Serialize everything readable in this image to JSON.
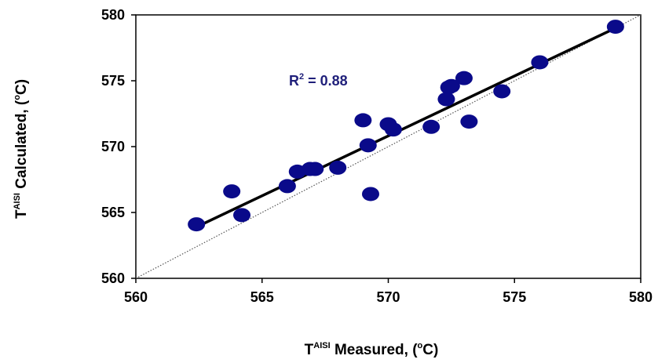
{
  "chart_data": {
    "type": "scatter",
    "xlabel": {
      "prefix": "T",
      "superscript": "AISI",
      "suffix_pre": " Measured, (",
      "suffix_sup": "o",
      "suffix_post": "C)"
    },
    "ylabel": {
      "prefix": "T",
      "superscript": "AISI",
      "suffix_pre": " Calculated, (",
      "suffix_sup": "o",
      "suffix_post": "C)"
    },
    "xlim": [
      560,
      580
    ],
    "ylim": [
      560,
      580
    ],
    "xticks": [
      "560",
      "565",
      "570",
      "575",
      "580"
    ],
    "yticks": [
      "560",
      "565",
      "570",
      "575",
      "580"
    ],
    "annotation": {
      "prefix": "R",
      "superscript": "2",
      "suffix": " = 0.88"
    },
    "points": [
      {
        "x": 562.4,
        "y": 564.1
      },
      {
        "x": 563.8,
        "y": 566.6
      },
      {
        "x": 564.2,
        "y": 564.8
      },
      {
        "x": 566.0,
        "y": 567.0
      },
      {
        "x": 566.4,
        "y": 568.1
      },
      {
        "x": 566.9,
        "y": 568.3
      },
      {
        "x": 567.1,
        "y": 568.3
      },
      {
        "x": 568.0,
        "y": 568.4
      },
      {
        "x": 569.0,
        "y": 572.0
      },
      {
        "x": 569.2,
        "y": 570.1
      },
      {
        "x": 569.3,
        "y": 566.4
      },
      {
        "x": 570.0,
        "y": 571.7
      },
      {
        "x": 570.2,
        "y": 571.3
      },
      {
        "x": 571.7,
        "y": 571.5
      },
      {
        "x": 572.3,
        "y": 573.6
      },
      {
        "x": 572.4,
        "y": 574.5
      },
      {
        "x": 572.5,
        "y": 574.6
      },
      {
        "x": 573.0,
        "y": 575.2
      },
      {
        "x": 573.2,
        "y": 571.9
      },
      {
        "x": 574.5,
        "y": 574.2
      },
      {
        "x": 576.0,
        "y": 576.4
      },
      {
        "x": 579.0,
        "y": 579.1
      }
    ],
    "fit_line": {
      "x": [
        562.4,
        579.0
      ],
      "y": [
        563.9,
        579.0
      ]
    },
    "identity_line": {
      "x": [
        560,
        580
      ],
      "y": [
        560,
        580
      ]
    },
    "grid": false,
    "legend": "none",
    "colors": {
      "points": "#0a0a8a",
      "fit_line": "#000000",
      "identity_line": "#555555",
      "annotation": "#1f1f7a"
    }
  }
}
